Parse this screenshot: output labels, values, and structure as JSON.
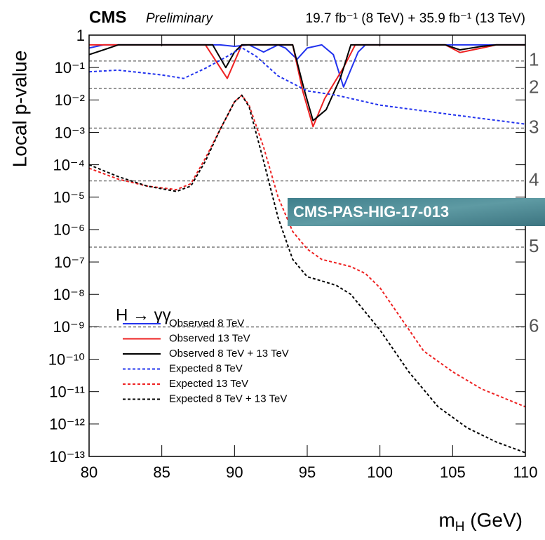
{
  "chart_data": {
    "type": "line",
    "experiment": "CMS",
    "status": "Preliminary",
    "lumi": "19.7 fb⁻¹ (8 TeV) + 35.9 fb⁻¹ (13 TeV)",
    "ylabel": "Local p-value",
    "xlabel": {
      "main": "m",
      "sub": "H",
      "unit": " (GeV)"
    },
    "annotation": "H → γγ",
    "overlay_label": "CMS-PAS-HIG-17-013",
    "log_y": true,
    "xlim": [
      80,
      110
    ],
    "xticks": [
      80,
      85,
      90,
      95,
      100,
      105,
      110
    ],
    "ylim": [
      1e-13,
      1
    ],
    "yticks": [
      1,
      {
        "value": 0.1,
        "label": "10⁻¹"
      },
      {
        "value": 0.01,
        "label": "10⁻²"
      },
      {
        "value": 0.001,
        "label": "10⁻³"
      },
      {
        "value": 0.0001,
        "label": "10⁻⁴"
      },
      {
        "value": 1e-05,
        "label": "10⁻⁵"
      },
      {
        "value": 1e-06,
        "label": "10⁻⁶"
      },
      {
        "value": 1e-07,
        "label": "10⁻⁷"
      },
      {
        "value": 1e-08,
        "label": "10⁻⁸"
      },
      {
        "value": 1e-09,
        "label": "10⁻⁹"
      },
      {
        "value": 1e-10,
        "label": "10⁻¹⁰"
      },
      {
        "value": 1e-11,
        "label": "10⁻¹¹"
      },
      {
        "value": 1e-12,
        "label": "10⁻¹²"
      },
      {
        "value": 1e-13,
        "label": "10⁻¹³"
      }
    ],
    "significance_lines": [
      {
        "value": 0.159,
        "label": "1"
      },
      {
        "value": 0.0228,
        "label": "2"
      },
      {
        "value": 0.00135,
        "label": "3"
      },
      {
        "value": 3.17e-05,
        "label": "4"
      },
      {
        "value": 2.87e-07,
        "label": "5"
      },
      {
        "value": 9.9e-10,
        "label": "6"
      }
    ],
    "legend": "lower left",
    "series": [
      {
        "name": "Observed 8 TeV",
        "color": "#2233ee",
        "linestyle": "solid",
        "x": [
          80,
          81,
          89,
          90,
          91,
          92,
          93,
          93.5,
          94.3,
          95,
          96,
          96.8,
          97.5,
          98.5,
          99,
          110
        ],
        "values": [
          0.4,
          0.5,
          0.5,
          0.45,
          0.5,
          0.3,
          0.5,
          0.4,
          0.18,
          0.4,
          0.5,
          0.25,
          0.025,
          0.3,
          0.5,
          0.5
        ]
      },
      {
        "name": "Observed 13 TeV",
        "color": "#ee2222",
        "linestyle": "solid",
        "x": [
          80,
          88,
          89.5,
          90.5,
          94,
          94.7,
          95.4,
          96.2,
          97.5,
          98.3,
          104.5,
          105.5,
          107,
          108,
          110
        ],
        "values": [
          0.5,
          0.5,
          0.046,
          0.5,
          0.5,
          0.018,
          0.0015,
          0.011,
          0.1,
          0.5,
          0.5,
          0.29,
          0.4,
          0.5,
          0.5
        ]
      },
      {
        "name": "Observed 8 TeV + 13 TeV",
        "color": "#000000",
        "linestyle": "solid",
        "x": [
          80,
          81,
          82,
          88.5,
          89.4,
          90,
          90.5,
          94,
          94.8,
          95.4,
          96.3,
          97.3,
          98,
          104.5,
          105.5,
          107,
          108,
          110
        ],
        "values": [
          0.25,
          0.35,
          0.5,
          0.5,
          0.1,
          0.3,
          0.5,
          0.5,
          0.02,
          0.0023,
          0.005,
          0.05,
          0.5,
          0.5,
          0.35,
          0.45,
          0.5,
          0.5
        ]
      },
      {
        "name": "Expected 8 TeV",
        "color": "#2233ee",
        "linestyle": "dashed",
        "x": [
          80,
          82,
          85,
          86.5,
          88,
          89.5,
          90.5,
          91.5,
          93,
          95,
          97,
          100,
          105,
          110
        ],
        "values": [
          0.074,
          0.083,
          0.059,
          0.046,
          0.095,
          0.22,
          0.41,
          0.22,
          0.055,
          0.019,
          0.014,
          0.0069,
          0.0035,
          0.0018
        ]
      },
      {
        "name": "Expected 13 TeV",
        "color": "#ee2222",
        "linestyle": "dashed",
        "x": [
          80,
          82,
          84,
          86,
          87,
          88,
          89,
          90,
          90.5,
          91,
          92,
          93,
          94,
          95,
          96,
          97,
          98,
          99,
          100,
          101,
          102,
          103,
          105,
          107,
          110
        ],
        "values": [
          7.8e-05,
          3.6e-05,
          2.2e-05,
          1.7e-05,
          2.6e-05,
          0.00016,
          0.0012,
          0.0087,
          0.014,
          0.0069,
          0.00035,
          1e-05,
          8.7e-07,
          2.5e-07,
          1.2e-07,
          9.3e-08,
          7.2e-08,
          4.4e-08,
          1.6e-08,
          3.6e-09,
          8.1e-10,
          1.8e-10,
          4.1e-11,
          1.2e-11,
          3.4e-12
        ]
      },
      {
        "name": "Expected 8 TeV + 13 TeV",
        "color": "#000000",
        "linestyle": "dashed",
        "x": [
          80,
          82,
          84,
          86,
          87,
          88,
          89,
          90,
          90.5,
          91,
          92,
          93,
          94,
          95,
          96,
          97,
          98,
          100,
          102,
          104,
          106,
          108,
          110
        ],
        "values": [
          0.0001,
          4.3e-05,
          2.2e-05,
          1.5e-05,
          2.2e-05,
          0.00013,
          0.0012,
          0.0087,
          0.014,
          0.0062,
          0.00013,
          2.3e-06,
          1.2e-07,
          3.5e-08,
          2.6e-08,
          1.9e-08,
          1e-08,
          8e-10,
          4e-11,
          3.4e-12,
          7.6e-13,
          2.8e-13,
          1.3e-13
        ]
      }
    ]
  }
}
